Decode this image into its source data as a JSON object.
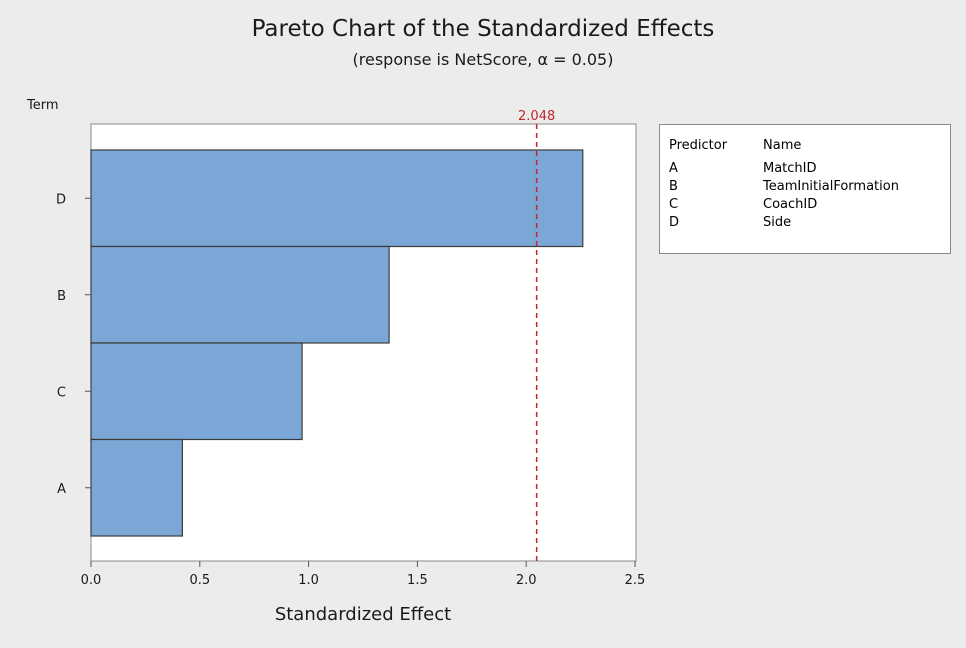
{
  "chart_data": {
    "type": "bar",
    "orientation": "horizontal",
    "title": "Pareto Chart of the Standardized Effects",
    "subtitle": "(response is NetScore, α = 0.05)",
    "ylabel": "Term",
    "xlabel": "Standardized Effect",
    "categories": [
      "D",
      "B",
      "C",
      "A"
    ],
    "values": [
      2.26,
      1.37,
      0.97,
      0.42
    ],
    "xlim": [
      0,
      2.55
    ],
    "xticks": [
      "0.0",
      "0.5",
      "1.0",
      "1.5",
      "2.0",
      "2.5"
    ],
    "reference_line": {
      "value": 2.048,
      "label": "2.048",
      "color": "#c0282d",
      "style": "dashed"
    },
    "bar_color": "#7ba7d6",
    "bar_edge_color": "#3b3b3b",
    "grid": false,
    "legend_position": "top-right",
    "legend": {
      "headers": [
        "Predictor",
        "Name"
      ],
      "rows": [
        {
          "predictor": "A",
          "name": "MatchID"
        },
        {
          "predictor": "B",
          "name": "TeamInitialFormation"
        },
        {
          "predictor": "C",
          "name": "CoachID"
        },
        {
          "predictor": "D",
          "name": "Side"
        }
      ]
    }
  }
}
